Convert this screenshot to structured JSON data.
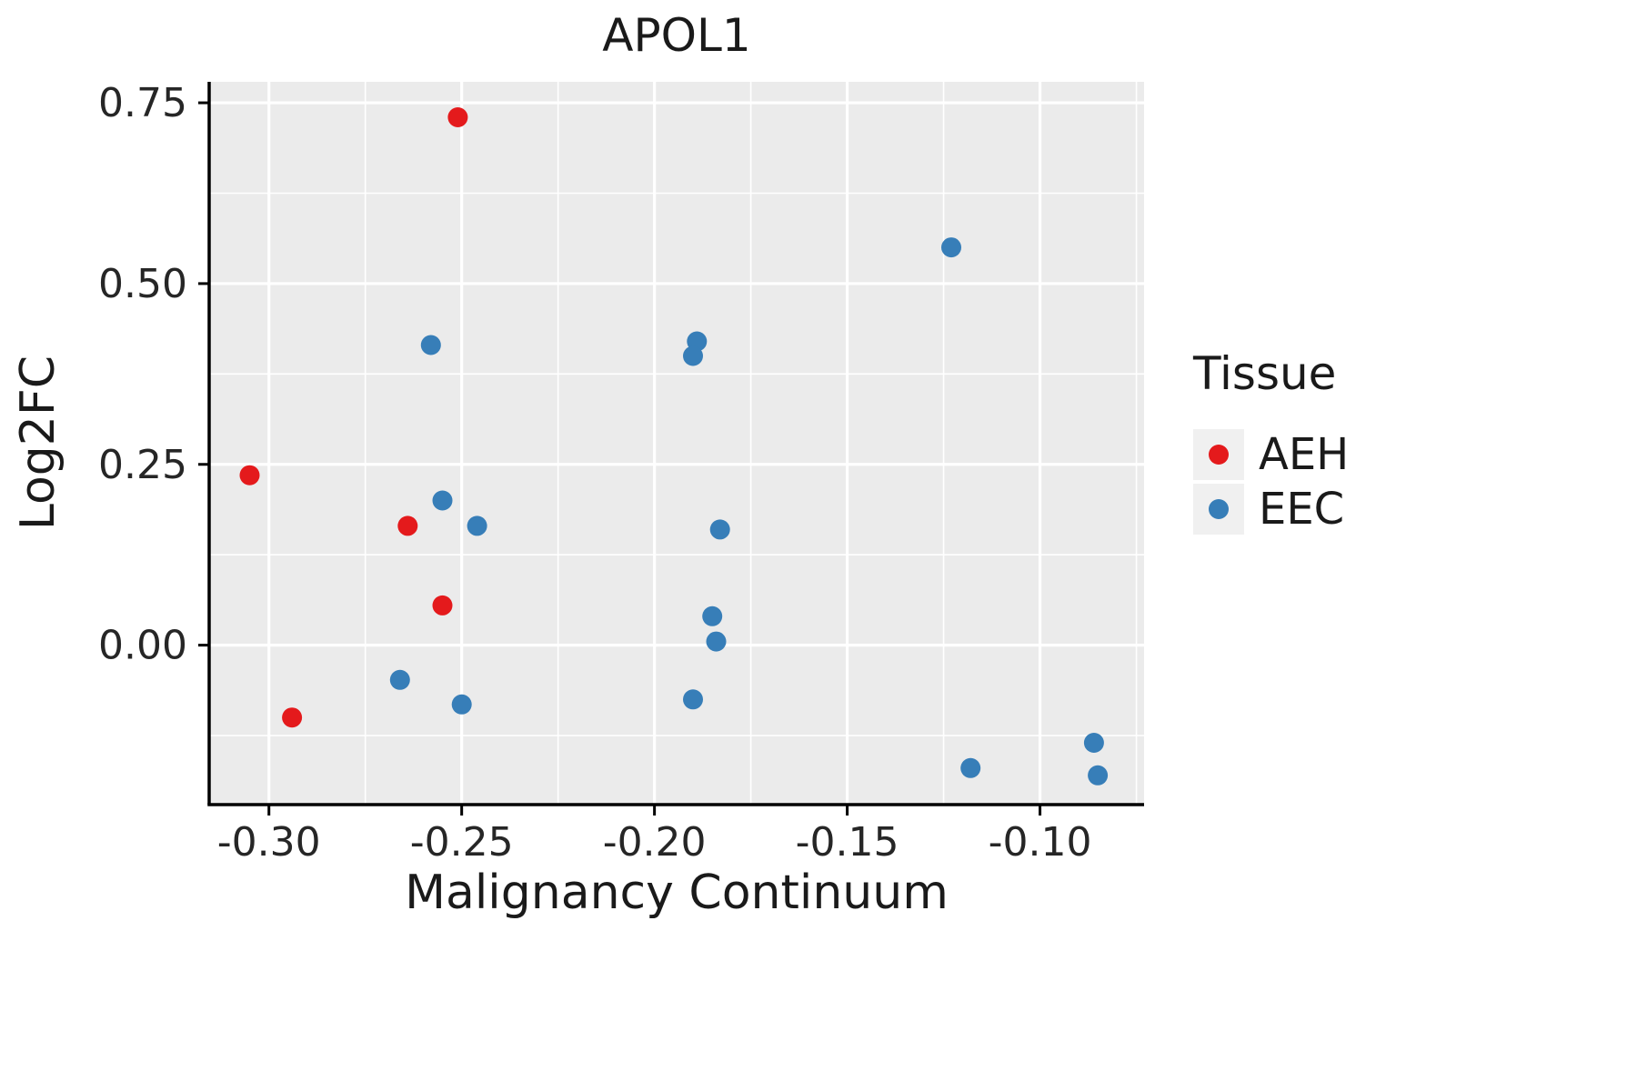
{
  "chart_data": {
    "type": "scatter",
    "title": "APOL1",
    "xlabel": "Malignancy Continuum",
    "ylabel": "Log2FC",
    "xlim": [
      -0.3155,
      -0.073
    ],
    "ylim": [
      -0.2205,
      0.779
    ],
    "x_ticks": [
      -0.3,
      -0.25,
      -0.2,
      -0.15,
      -0.1
    ],
    "x_tick_labels": [
      "-0.30",
      "-0.25",
      "-0.20",
      "-0.15",
      "-0.10"
    ],
    "y_ticks": [
      0.0,
      0.25,
      0.5,
      0.75
    ],
    "y_tick_labels": [
      "0.00",
      "0.25",
      "0.50",
      "0.75"
    ],
    "grid": true,
    "panel_background": "#EBEBEB",
    "grid_color": "#FFFFFF",
    "axis_color": "#000000",
    "tick_label_color": "#262626",
    "point_radius": 11,
    "legend": {
      "title": "Tissue",
      "position": "right",
      "entries": [
        {
          "label": "AEH",
          "color": "#E41A1C"
        },
        {
          "label": "EEC",
          "color": "#377EB8"
        }
      ]
    },
    "series": [
      {
        "name": "AEH",
        "color": "#E41A1C",
        "points": [
          [
            -0.251,
            0.73
          ],
          [
            -0.305,
            0.235
          ],
          [
            -0.264,
            0.165
          ],
          [
            -0.255,
            0.055
          ],
          [
            -0.294,
            -0.1
          ]
        ]
      },
      {
        "name": "EEC",
        "color": "#377EB8",
        "points": [
          [
            -0.123,
            0.55
          ],
          [
            -0.258,
            0.415
          ],
          [
            -0.189,
            0.42
          ],
          [
            -0.19,
            0.4
          ],
          [
            -0.255,
            0.2
          ],
          [
            -0.246,
            0.165
          ],
          [
            -0.183,
            0.16
          ],
          [
            -0.185,
            0.04
          ],
          [
            -0.184,
            0.005
          ],
          [
            -0.266,
            -0.048
          ],
          [
            -0.25,
            -0.082
          ],
          [
            -0.19,
            -0.075
          ],
          [
            -0.086,
            -0.135
          ],
          [
            -0.118,
            -0.17
          ],
          [
            -0.085,
            -0.18
          ]
        ]
      }
    ]
  }
}
